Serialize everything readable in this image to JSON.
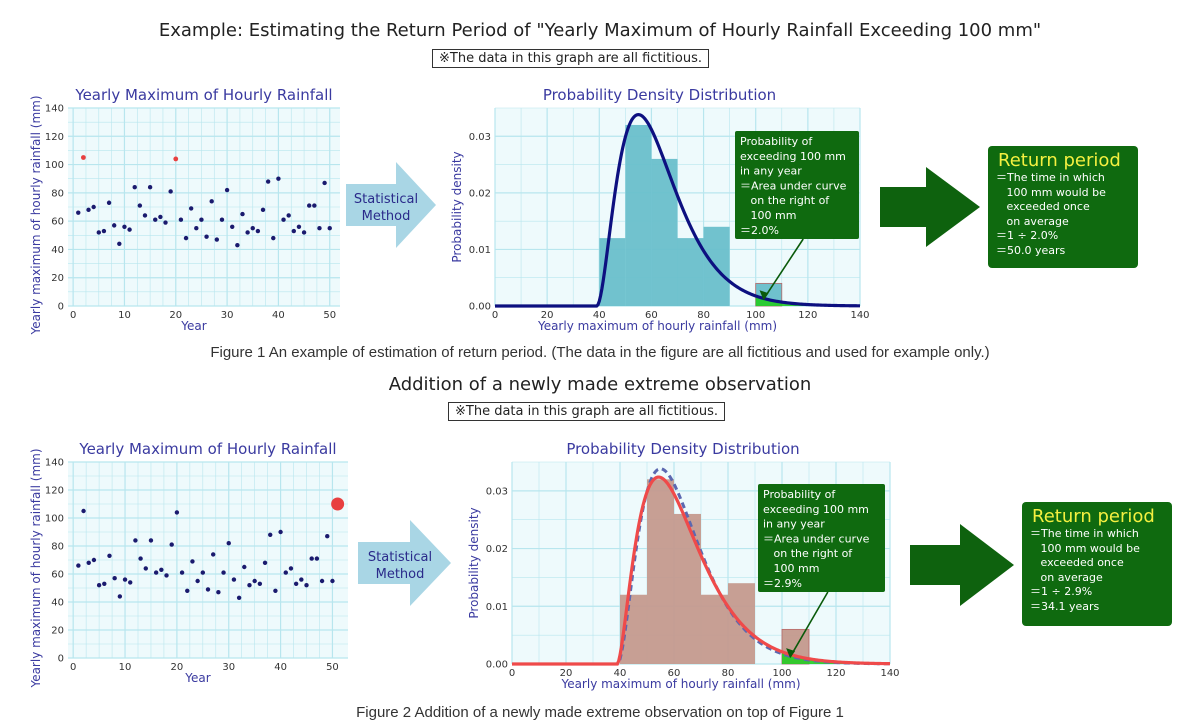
{
  "fig1": {
    "heading": "Example: Estimating the Return Period of \"Yearly Maximum of Hourly Rainfall Exceeding 100 mm\"",
    "note": "※The data in this graph are all fictitious.",
    "caption": "Figure 1   An example of estimation of return period.  (The data in the figure are all fictitious and used for example only.)",
    "method_label": [
      "Statistical",
      "Method"
    ],
    "prob_box": [
      "Probability of",
      "exceeding 100 mm",
      "in any year",
      "＝Area under curve",
      "   on the right of",
      "   100 mm",
      "＝2.0%"
    ],
    "return_title": "Return period",
    "return_lines": [
      "＝The time in which",
      "   100 mm would be",
      "   exceeded once",
      "   on average",
      "＝1 ÷ 2.0%",
      "＝50.0 years"
    ]
  },
  "fig2": {
    "heading": "Addition of a newly made extreme observation",
    "note": "※The data in this graph are all fictitious.",
    "caption": "Figure 2   Addition of a newly made extreme observation on top of Figure 1",
    "method_label": [
      "Statistical",
      "Method"
    ],
    "prob_box": [
      "Probability of",
      "exceeding 100 mm",
      "in any year",
      "＝Area under curve",
      "   on the right of",
      "   100 mm",
      "＝2.9%"
    ],
    "return_title": "Return period",
    "return_lines": [
      "＝The time in which",
      "   100 mm would be",
      "   exceeded once",
      "   on average",
      "＝1 ÷ 2.9%",
      "＝34.1 years"
    ]
  },
  "colors": {
    "scatter_title": "#3a3aa0",
    "point": "#1a1a6e",
    "highlight": "#e84040",
    "grid_bg": "#eefafc",
    "grid_line": "#b8e6ee",
    "hist1": "#69bfcb",
    "curve1": "#0d1080",
    "hist2": "#c49a8e",
    "curve2": "#ef4a4a",
    "curve2_dash": "#5c68b0",
    "exceed": "#22cc22",
    "arrow_blue": "#a9d6e5",
    "arrow_green": "#0e620e",
    "box_green": "#0f6a0f"
  },
  "chart_data": [
    {
      "type": "scatter",
      "title": "Yearly Maximum of Hourly Rainfall",
      "xlabel": "Year",
      "ylabel": "Yearly maximum of hourly rainfall (mm)",
      "xlim": [
        -1,
        52
      ],
      "ylim": [
        0,
        140
      ],
      "xticks": [
        0,
        10,
        20,
        30,
        40,
        50
      ],
      "yticks": [
        0,
        20,
        40,
        60,
        80,
        100,
        120,
        140
      ],
      "x": [
        1,
        2,
        3,
        4,
        5,
        6,
        7,
        8,
        9,
        10,
        11,
        12,
        13,
        14,
        15,
        16,
        17,
        18,
        19,
        20,
        21,
        22,
        23,
        24,
        25,
        26,
        27,
        28,
        29,
        30,
        31,
        32,
        33,
        34,
        35,
        36,
        37,
        38,
        39,
        40,
        41,
        42,
        43,
        44,
        45,
        46,
        47,
        48,
        49,
        50
      ],
      "y": [
        66,
        105,
        68,
        70,
        52,
        53,
        73,
        57,
        44,
        56,
        54,
        84,
        71,
        64,
        84,
        61,
        63,
        59,
        81,
        104,
        61,
        48,
        69,
        55,
        61,
        49,
        74,
        47,
        61,
        82,
        56,
        43,
        65,
        52,
        55,
        53,
        68,
        88,
        48,
        90,
        61,
        64,
        53,
        56,
        52,
        71,
        71,
        55,
        87,
        55
      ],
      "highlight_x": [
        2,
        20
      ]
    },
    {
      "type": "histogram_density",
      "title": "Probability Density Distribution",
      "xlabel": "Yearly maximum of hourly rainfall (mm)",
      "ylabel": "Probability density",
      "xlim": [
        0,
        140
      ],
      "ylim": [
        0,
        0.035
      ],
      "xticks": [
        0,
        20,
        40,
        60,
        80,
        100,
        120,
        140
      ],
      "yticks": [
        0.0,
        0.01,
        0.02,
        0.03
      ],
      "bins": [
        [
          40,
          50,
          0.012
        ],
        [
          50,
          60,
          0.032
        ],
        [
          60,
          70,
          0.026
        ],
        [
          70,
          80,
          0.012
        ],
        [
          80,
          90,
          0.014
        ],
        [
          90,
          100,
          0.0
        ],
        [
          100,
          110,
          0.004
        ]
      ],
      "curve": {
        "shape": 3.0,
        "scale": 8.0,
        "loc": 39.0
      },
      "exceed_threshold": 100
    },
    {
      "type": "scatter",
      "title": "Yearly Maximum of Hourly Rainfall",
      "xlabel": "Year",
      "ylabel": "Yearly maximum of hourly rainfall (mm)",
      "xlim": [
        -1,
        53
      ],
      "ylim": [
        0,
        140
      ],
      "xticks": [
        0,
        10,
        20,
        30,
        40,
        50
      ],
      "yticks": [
        0,
        20,
        40,
        60,
        80,
        100,
        120,
        140
      ],
      "x": [
        1,
        2,
        3,
        4,
        5,
        6,
        7,
        8,
        9,
        10,
        11,
        12,
        13,
        14,
        15,
        16,
        17,
        18,
        19,
        20,
        21,
        22,
        23,
        24,
        25,
        26,
        27,
        28,
        29,
        30,
        31,
        32,
        33,
        34,
        35,
        36,
        37,
        38,
        39,
        40,
        41,
        42,
        43,
        44,
        45,
        46,
        47,
        48,
        49,
        50,
        51
      ],
      "y": [
        66,
        105,
        68,
        70,
        52,
        53,
        73,
        57,
        44,
        56,
        54,
        84,
        71,
        64,
        84,
        61,
        63,
        59,
        81,
        104,
        61,
        48,
        69,
        55,
        61,
        49,
        74,
        47,
        61,
        82,
        56,
        43,
        65,
        52,
        55,
        53,
        68,
        88,
        48,
        90,
        61,
        64,
        53,
        56,
        52,
        71,
        71,
        55,
        87,
        55,
        110
      ],
      "highlight_x": [
        51
      ]
    },
    {
      "type": "histogram_density",
      "title": "Probability Density Distribution",
      "xlabel": "Yearly maximum of hourly rainfall (mm)",
      "ylabel": "Probability density",
      "xlim": [
        0,
        140
      ],
      "ylim": [
        0,
        0.035
      ],
      "xticks": [
        0,
        20,
        40,
        60,
        80,
        100,
        120,
        140
      ],
      "yticks": [
        0.0,
        0.01,
        0.02,
        0.03
      ],
      "bins": [
        [
          40,
          50,
          0.012
        ],
        [
          50,
          60,
          0.032
        ],
        [
          60,
          70,
          0.026
        ],
        [
          70,
          80,
          0.012
        ],
        [
          80,
          90,
          0.014
        ],
        [
          90,
          100,
          0.0
        ],
        [
          100,
          110,
          0.006
        ]
      ],
      "curve": {
        "shape": 2.7,
        "scale": 9.0,
        "loc": 39.0
      },
      "old_curve": {
        "shape": 3.0,
        "scale": 8.0,
        "loc": 39.0
      },
      "exceed_threshold": 100
    }
  ]
}
